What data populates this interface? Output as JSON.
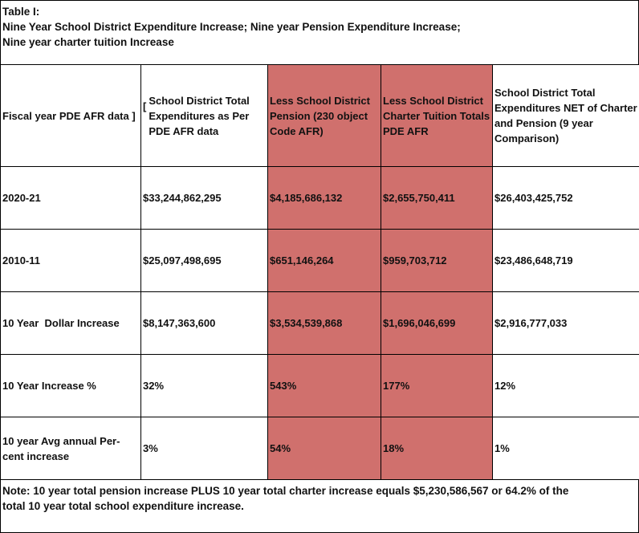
{
  "table": {
    "title": [
      "Table I:",
      "Nine Year School District Expenditure Increase; Nine year Pension Expenditure Increase;",
      "Nine year charter tuition Increase"
    ],
    "bracket": "[",
    "header": [
      "Fiscal year PDE AFR data ]",
      "School District Total Expenditures as Per PDE AFR data",
      "Less School District Pension (230 object Code AFR)",
      "Less School District Charter Tuition Totals PDE AFR",
      "School District Total Expenditures NET of Charter and Pension (9 year Comparison)"
    ],
    "rows": [
      [
        "2020-21",
        "$33,244,862,295",
        "$4,185,686,132",
        "$2,655,750,411",
        "$26,403,425,752"
      ],
      [
        "2010-11",
        "$25,097,498,695",
        "$651,146,264",
        "$959,703,712",
        "$23,486,648,719"
      ],
      [
        "10 Year  Dollar Increase",
        "$8,147,363,600",
        "$3,534,539,868",
        "$1,696,046,699",
        "$2,916,777,033"
      ],
      [
        "10 Year Increase %",
        "32%",
        "543%",
        "177%",
        "12%"
      ],
      [
        "10 year Avg annual Per-cent increase",
        "3%",
        "54%",
        "18%",
        "1%"
      ]
    ],
    "note": [
      "Note: 10 year total pension increase PLUS 10 year total charter increase equals $5,230,586,567 or 64.2% of the",
      "total 10 year total school expenditure increase."
    ]
  }
}
